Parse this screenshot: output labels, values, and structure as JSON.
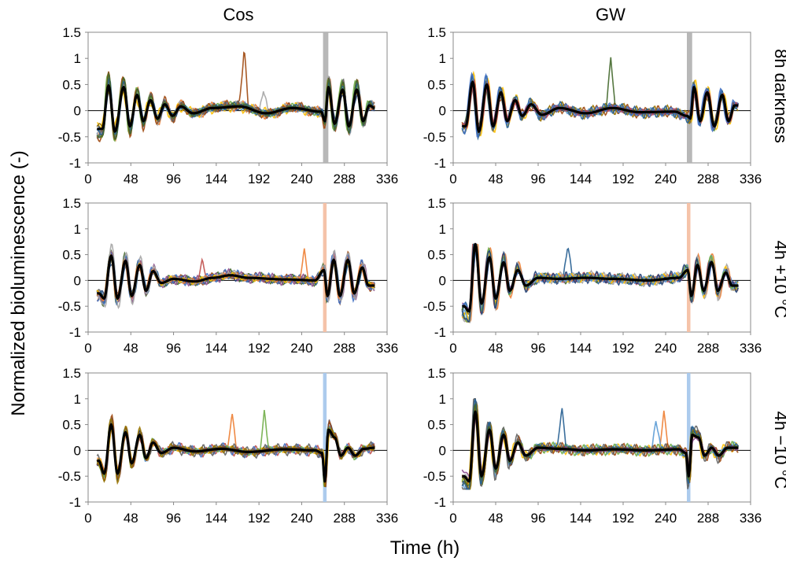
{
  "figure": {
    "column_titles": [
      "Cos",
      "GW"
    ],
    "row_labels": [
      "8h darkness",
      "4h +10 °C",
      "4h −10 °C"
    ],
    "ylabel": "Normalized bioluminescence (-)",
    "xlabel": "Time (h)"
  },
  "chart_data": [
    {
      "type": "line",
      "panel": "Cos / 8h darkness",
      "row": 0,
      "col": 0,
      "xlim": [
        0,
        336
      ],
      "ylim": [
        -1,
        1.5
      ],
      "xticks": [
        0,
        48,
        96,
        144,
        192,
        240,
        288,
        336
      ],
      "yticks": [
        -1,
        -0.5,
        0,
        0.5,
        1,
        1.5
      ],
      "ytick_labels": [
        "-1",
        "-0.5",
        "0",
        "0.5",
        "1",
        "1.5"
      ],
      "treatment_window": [
        264,
        270
      ],
      "treatment_color": "#b4b4b4",
      "data_range": [
        10,
        322
      ],
      "series_count": 12,
      "mean_peaks": [
        [
          16,
          -0.35
        ],
        [
          23,
          0.48
        ],
        [
          30,
          -0.4
        ],
        [
          40,
          0.45
        ],
        [
          47,
          -0.3
        ],
        [
          55,
          0.3
        ],
        [
          62,
          -0.2
        ],
        [
          70,
          0.2
        ],
        [
          78,
          -0.15
        ],
        [
          86,
          0.12
        ],
        [
          95,
          -0.1
        ],
        [
          104,
          0.08
        ],
        [
          118,
          -0.05
        ],
        [
          140,
          0.05
        ],
        [
          170,
          0.08
        ],
        [
          200,
          -0.05
        ],
        [
          230,
          0.05
        ],
        [
          262,
          -0.02
        ],
        [
          266,
          -0.2
        ],
        [
          270,
          0.45
        ],
        [
          277,
          -0.25
        ],
        [
          286,
          0.4
        ],
        [
          293,
          -0.3
        ],
        [
          302,
          0.4
        ],
        [
          309,
          -0.2
        ],
        [
          316,
          0.1
        ],
        [
          322,
          0.05
        ]
      ],
      "y_range": [
        -0.65,
        1.15
      ]
    },
    {
      "type": "line",
      "panel": "GW / 8h darkness",
      "row": 0,
      "col": 1,
      "xlim": [
        0,
        336
      ],
      "ylim": [
        -1,
        1.5
      ],
      "xticks": [
        0,
        48,
        96,
        144,
        192,
        240,
        288,
        336
      ],
      "yticks": [
        -1,
        -0.5,
        0,
        0.5,
        1,
        1.5
      ],
      "ytick_labels": [
        "-1",
        "-0.5",
        "0",
        "0.5",
        "1",
        "1.5"
      ],
      "treatment_window": [
        264,
        270
      ],
      "treatment_color": "#b4b4b4",
      "data_range": [
        10,
        322
      ],
      "series_count": 12,
      "mean_peaks": [
        [
          14,
          -0.3
        ],
        [
          22,
          0.55
        ],
        [
          29,
          -0.4
        ],
        [
          38,
          0.5
        ],
        [
          45,
          -0.3
        ],
        [
          54,
          0.35
        ],
        [
          61,
          -0.2
        ],
        [
          70,
          0.2
        ],
        [
          78,
          -0.1
        ],
        [
          88,
          0.12
        ],
        [
          100,
          -0.08
        ],
        [
          120,
          0.05
        ],
        [
          150,
          -0.05
        ],
        [
          180,
          0.05
        ],
        [
          210,
          -0.03
        ],
        [
          250,
          -0.02
        ],
        [
          264,
          -0.1
        ],
        [
          268,
          -0.15
        ],
        [
          272,
          0.45
        ],
        [
          279,
          -0.2
        ],
        [
          287,
          0.35
        ],
        [
          295,
          -0.3
        ],
        [
          304,
          0.3
        ],
        [
          311,
          -0.2
        ],
        [
          318,
          0.1
        ]
      ],
      "y_range": [
        -0.7,
        1.2
      ]
    },
    {
      "type": "line",
      "panel": "Cos / 4h +10 °C",
      "row": 1,
      "col": 0,
      "xlim": [
        0,
        336
      ],
      "ylim": [
        -1,
        1.5
      ],
      "xticks": [
        0,
        48,
        96,
        144,
        192,
        240,
        288,
        336
      ],
      "yticks": [
        -1,
        -0.5,
        0,
        0.5,
        1,
        1.5
      ],
      "ytick_labels": [
        "-1",
        "-0.5",
        "0",
        "0.5",
        "1",
        "1.5"
      ],
      "treatment_window": [
        264,
        268
      ],
      "treatment_color": "#f4c0a4",
      "data_range": [
        10,
        322
      ],
      "series_count": 12,
      "mean_peaks": [
        [
          12,
          -0.25
        ],
        [
          18,
          -0.35
        ],
        [
          26,
          0.48
        ],
        [
          33,
          -0.35
        ],
        [
          42,
          0.38
        ],
        [
          49,
          -0.3
        ],
        [
          58,
          0.3
        ],
        [
          65,
          -0.2
        ],
        [
          73,
          0.18
        ],
        [
          82,
          -0.05
        ],
        [
          96,
          0.03
        ],
        [
          120,
          -0.02
        ],
        [
          140,
          0.05
        ],
        [
          160,
          0.1
        ],
        [
          180,
          0.05
        ],
        [
          220,
          0.02
        ],
        [
          255,
          0.0
        ],
        [
          265,
          0.2
        ],
        [
          269,
          -0.3
        ],
        [
          276,
          0.4
        ],
        [
          283,
          -0.3
        ],
        [
          292,
          0.4
        ],
        [
          299,
          -0.25
        ],
        [
          308,
          0.25
        ],
        [
          315,
          -0.1
        ],
        [
          322,
          -0.1
        ]
      ],
      "y_range": [
        -0.75,
        1.4
      ]
    },
    {
      "type": "line",
      "panel": "GW / 4h +10 °C",
      "row": 1,
      "col": 1,
      "xlim": [
        0,
        336
      ],
      "ylim": [
        -1,
        1.5
      ],
      "xticks": [
        0,
        48,
        96,
        144,
        192,
        240,
        288,
        336
      ],
      "yticks": [
        -1,
        -0.5,
        0,
        0.5,
        1,
        1.5
      ],
      "ytick_labels": [
        "-1",
        "-0.5",
        "0",
        "0.5",
        "1",
        "1.5"
      ],
      "treatment_window": [
        264,
        268
      ],
      "treatment_color": "#f4c0a4",
      "data_range": [
        10,
        322
      ],
      "series_count": 12,
      "mean_peaks": [
        [
          12,
          -0.5
        ],
        [
          18,
          -0.6
        ],
        [
          25,
          0.7
        ],
        [
          32,
          -0.45
        ],
        [
          41,
          0.45
        ],
        [
          48,
          -0.35
        ],
        [
          57,
          0.35
        ],
        [
          64,
          -0.2
        ],
        [
          73,
          0.2
        ],
        [
          82,
          -0.1
        ],
        [
          96,
          0.05
        ],
        [
          120,
          0.03
        ],
        [
          150,
          0.05
        ],
        [
          180,
          0.03
        ],
        [
          220,
          0.0
        ],
        [
          255,
          0.05
        ],
        [
          265,
          0.2
        ],
        [
          269,
          -0.3
        ],
        [
          276,
          0.3
        ],
        [
          283,
          -0.2
        ],
        [
          292,
          0.35
        ],
        [
          299,
          -0.2
        ],
        [
          308,
          0.15
        ],
        [
          315,
          -0.1
        ],
        [
          322,
          -0.1
        ]
      ],
      "y_range": [
        -0.8,
        0.7
      ]
    },
    {
      "type": "line",
      "panel": "Cos / 4h −10 °C",
      "row": 2,
      "col": 0,
      "xlim": [
        0,
        336
      ],
      "ylim": [
        -1,
        1.5
      ],
      "xticks": [
        0,
        48,
        96,
        144,
        192,
        240,
        288,
        336
      ],
      "yticks": [
        -1,
        -0.5,
        0,
        0.5,
        1,
        1.5
      ],
      "ytick_labels": [
        "-1",
        "-0.5",
        "0",
        "0.5",
        "1",
        "1.5"
      ],
      "treatment_window": [
        264,
        268
      ],
      "treatment_color": "#a8c8ec",
      "data_range": [
        10,
        322
      ],
      "series_count": 12,
      "mean_peaks": [
        [
          12,
          -0.2
        ],
        [
          18,
          -0.45
        ],
        [
          26,
          0.5
        ],
        [
          33,
          -0.45
        ],
        [
          42,
          0.35
        ],
        [
          49,
          -0.25
        ],
        [
          58,
          0.3
        ],
        [
          65,
          -0.15
        ],
        [
          73,
          0.15
        ],
        [
          82,
          -0.05
        ],
        [
          96,
          0.05
        ],
        [
          120,
          -0.02
        ],
        [
          150,
          0.03
        ],
        [
          180,
          -0.03
        ],
        [
          220,
          0.02
        ],
        [
          255,
          0.0
        ],
        [
          263,
          -0.05
        ],
        [
          266,
          -0.6
        ],
        [
          270,
          0.4
        ],
        [
          277,
          0.25
        ],
        [
          284,
          -0.1
        ],
        [
          292,
          0.05
        ],
        [
          300,
          -0.1
        ],
        [
          310,
          0.03
        ],
        [
          322,
          0.05
        ]
      ],
      "y_range": [
        -0.7,
        1.25
      ]
    },
    {
      "type": "line",
      "panel": "GW / 4h −10 °C",
      "row": 2,
      "col": 1,
      "xlim": [
        0,
        336
      ],
      "ylim": [
        -1,
        1.5
      ],
      "xticks": [
        0,
        48,
        96,
        144,
        192,
        240,
        288,
        336
      ],
      "yticks": [
        -1,
        -0.5,
        0,
        0.5,
        1,
        1.5
      ],
      "ytick_labels": [
        "-1",
        "-0.5",
        "0",
        "0.5",
        "1",
        "1.5"
      ],
      "treatment_window": [
        264,
        268
      ],
      "treatment_color": "#a8c8ec",
      "data_range": [
        10,
        322
      ],
      "series_count": 12,
      "mean_peaks": [
        [
          12,
          -0.5
        ],
        [
          18,
          -0.6
        ],
        [
          25,
          0.75
        ],
        [
          32,
          -0.5
        ],
        [
          41,
          0.4
        ],
        [
          48,
          -0.35
        ],
        [
          57,
          0.3
        ],
        [
          64,
          -0.2
        ],
        [
          73,
          0.15
        ],
        [
          82,
          -0.1
        ],
        [
          96,
          0.05
        ],
        [
          120,
          0.03
        ],
        [
          150,
          0.0
        ],
        [
          180,
          0.02
        ],
        [
          220,
          0.0
        ],
        [
          255,
          0.02
        ],
        [
          263,
          -0.05
        ],
        [
          266,
          -0.5
        ],
        [
          270,
          0.3
        ],
        [
          277,
          0.25
        ],
        [
          284,
          -0.1
        ],
        [
          292,
          0.05
        ],
        [
          300,
          -0.1
        ],
        [
          310,
          0.05
        ],
        [
          322,
          0.05
        ]
      ],
      "y_range": [
        -0.75,
        1.0
      ]
    }
  ],
  "style": {
    "mean_color": "#000000",
    "sample_colors": [
      "#4472c4",
      "#ed7d31",
      "#a5a5a5",
      "#ffc000",
      "#5b9bd5",
      "#70ad47",
      "#264478",
      "#9e480e",
      "#636363",
      "#997300",
      "#255e91",
      "#43682b",
      "#8c4b8c",
      "#c0504d"
    ]
  }
}
